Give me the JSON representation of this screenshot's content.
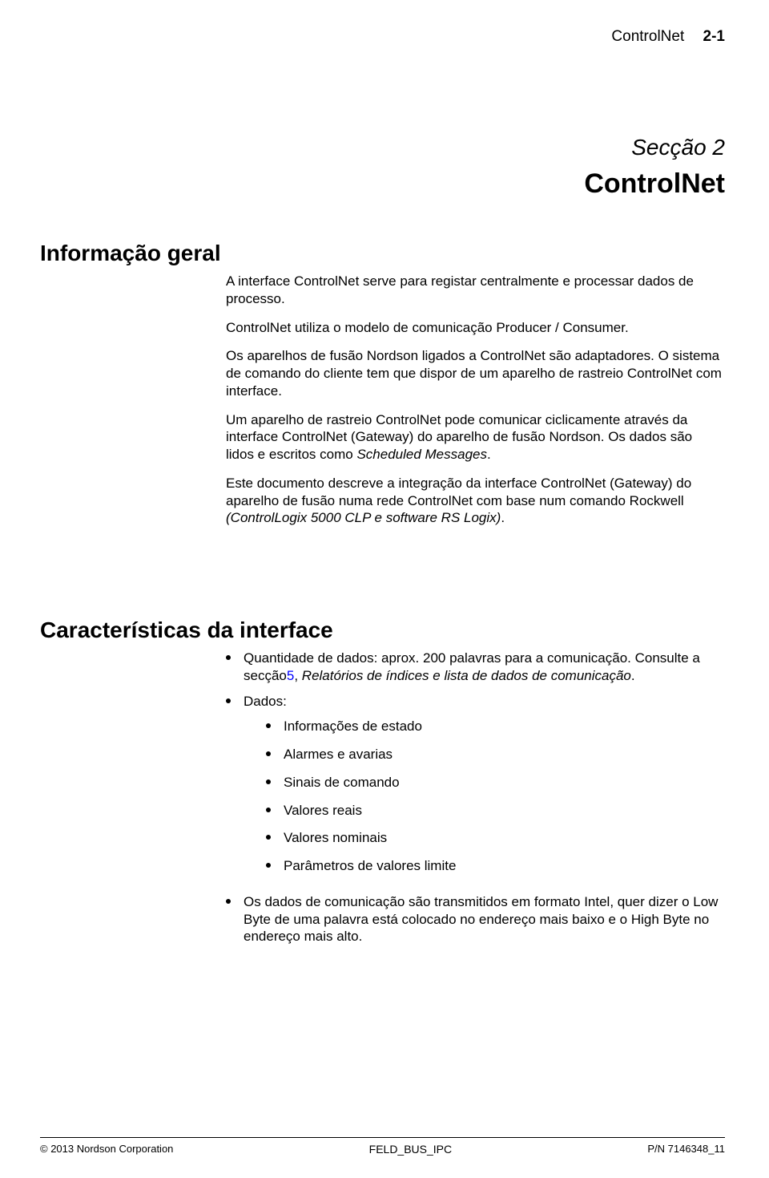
{
  "header": {
    "text": "ControlNet",
    "page": "2-1"
  },
  "section": {
    "number": "Secção 2",
    "title": "ControlNet"
  },
  "info": {
    "heading": "Informação geral",
    "p1": "A interface ControlNet serve para registar centralmente e processar dados de processo.",
    "p2": "ControlNet utiliza o modelo de comunicação Producer / Consumer.",
    "p3": "Os aparelhos de fusão Nordson ligados a ControlNet são adaptadores. O sistema de comando do cliente tem que dispor de um aparelho de rastreio ControlNet com interface.",
    "p4a": "Um aparelho de rastreio ControlNet pode comunicar ciclicamente através da interface ControlNet (Gateway) do aparelho de fusão Nordson. Os dados são lidos e escritos como ",
    "p4b": "Scheduled Messages",
    "p4c": ".",
    "p5a": "Este documento descreve a integração da interface ControlNet (Gateway) do aparelho de fusão numa rede ControlNet com base num comando Rockwell ",
    "p5b": "(ControlLogix 5000 CLP e software RS Logix)",
    "p5c": "."
  },
  "chars": {
    "heading": "Características da interface",
    "b1a": "Quantidade de dados: aprox. 200 palavras para a comunicação. Consulte a secção",
    "b1link": "5",
    "b1b": ", ",
    "b1c": "Relatórios de índices e lista de dados de comunicação",
    "b1d": ".",
    "b2": "Dados:",
    "sub1": "Informações de estado",
    "sub2": "Alarmes e avarias",
    "sub3": "Sinais de comando",
    "sub4": "Valores reais",
    "sub5": "Valores nominais",
    "sub6": "Parâmetros de valores limite",
    "b3": "Os dados de comunicação são transmitidos em formato Intel, quer dizer o Low Byte de uma palavra está colocado no endereço mais baixo e o High Byte no endereço mais alto."
  },
  "footer": {
    "left": "© 2013 Nordson Corporation",
    "center": "FELD_BUS_IPC",
    "right": "P/N 7146348_11"
  },
  "colors": {
    "text": "#000000",
    "link": "#0000ff",
    "background": "#ffffff"
  }
}
